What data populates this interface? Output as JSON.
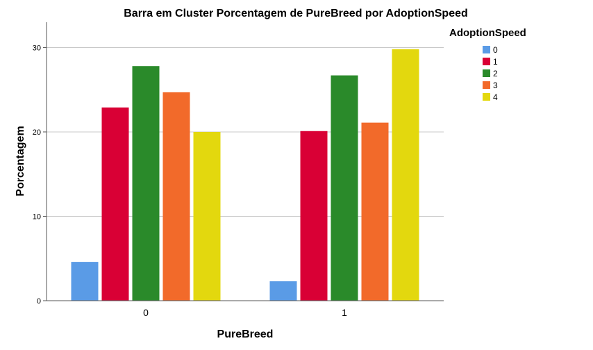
{
  "chart_data": {
    "type": "bar",
    "title": "Barra em Cluster Porcentagem de PureBreed por AdoptionSpeed",
    "xlabel": "PureBreed",
    "ylabel": "Porcentagem",
    "categories": [
      "0",
      "1"
    ],
    "ylim": [
      0,
      33
    ],
    "yticks": [
      "0",
      "10",
      "20",
      "30"
    ],
    "grid": true,
    "legend_position": "right",
    "legend_title": "AdoptionSpeed",
    "series": [
      {
        "name": "0",
        "color": "#5a9be6",
        "values": [
          4.6,
          2.3
        ]
      },
      {
        "name": "1",
        "color": "#d90035",
        "values": [
          22.9,
          20.1
        ]
      },
      {
        "name": "2",
        "color": "#2a8a2a",
        "values": [
          27.8,
          26.7
        ]
      },
      {
        "name": "3",
        "color": "#f26a2a",
        "values": [
          24.7,
          21.1
        ]
      },
      {
        "name": "4",
        "color": "#e3d80e",
        "values": [
          20.0,
          29.8
        ]
      }
    ]
  }
}
